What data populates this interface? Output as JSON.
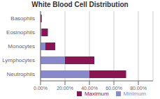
{
  "chart_data": {
    "type": "bar",
    "title": "White Blood Cell Distribution",
    "orientation": "horizontal",
    "categories": [
      "Neutrophils",
      "Lymphocytes",
      "Monocytes",
      "Eosinophils",
      "Basophils"
    ],
    "series": [
      {
        "name": "Maximum",
        "color": "#8B1552",
        "values": [
          0.7,
          0.44,
          0.12,
          0.06,
          0.01
        ]
      },
      {
        "name": "Minimum",
        "color": "#8888CC",
        "values": [
          0.4,
          0.2,
          0.04,
          0.01,
          0.0
        ]
      }
    ],
    "xlim": [
      0.0,
      0.92
    ],
    "xticks": [
      {
        "value": 0.0,
        "label": "0.00%"
      },
      {
        "value": 0.2,
        "label": "20.00%"
      },
      {
        "value": 0.4,
        "label": "40.00%"
      },
      {
        "value": 0.6,
        "label": "60.00%"
      },
      {
        "value": 0.8,
        "label": "80.00%"
      }
    ],
    "grid": true,
    "legend": "lower right"
  }
}
